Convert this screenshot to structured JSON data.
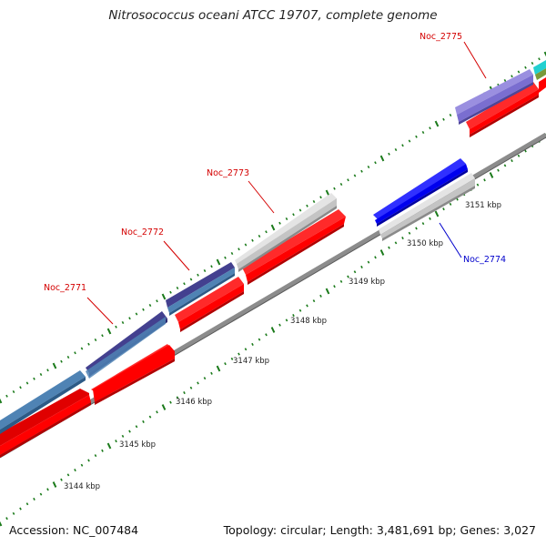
{
  "title": "Nitrosococcus oceani ATCC 19707, complete genome",
  "footer": {
    "accession": "Accession: NC_007484",
    "summary": "Topology: circular; Length: 3,481,691 bp; Genes: 3,027"
  },
  "colors": {
    "cds_forward": "#ff0000",
    "cds_reverse": "#ff0000",
    "feature_label_forward": "#d40000",
    "feature_label_reverse": "#0000cc",
    "backbone": "#8c8c8c",
    "ticks": "#1a7a1a",
    "cog_steelblue": "#4f83b4",
    "cog_darkslate": "#43408f",
    "cog_gray": "#c4c4c4",
    "cog_slateblue": "#7a6ed0",
    "cog_blue": "#0000ee",
    "cog_cyan": "#22d0d0",
    "cog_olive": "#7a9a3a"
  },
  "scale_labels": [
    "3144 kbp",
    "3145 kbp",
    "3146 kbp",
    "3147 kbp",
    "3148 kbp",
    "3149 kbp",
    "3150 kbp",
    "3151 kbp"
  ],
  "features": [
    {
      "name": "Noc_2771",
      "strand": "forward",
      "cog_color": "steelblue"
    },
    {
      "name": "Noc_2772",
      "strand": "forward",
      "cog_color": "darkslate"
    },
    {
      "name": "Noc_2773",
      "strand": "forward",
      "cog_color": "gray"
    },
    {
      "name": "Noc_2774",
      "strand": "reverse",
      "cog_color": "blue"
    },
    {
      "name": "Noc_2775",
      "strand": "forward",
      "cog_color": "slateblue"
    }
  ]
}
